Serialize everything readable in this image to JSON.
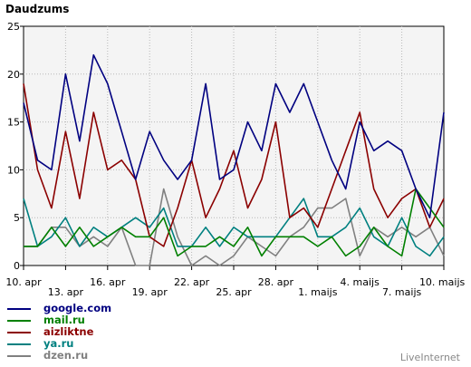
{
  "chart_data": {
    "type": "line",
    "title": "Daudzums",
    "ylim": [
      0,
      25
    ],
    "y_ticks": [
      0,
      5,
      10,
      15,
      20,
      25
    ],
    "grid": true,
    "legend_placement": "bottom-left",
    "x_tick_labels": [
      "10. apr",
      "13. apr",
      "16. apr",
      "19. apr",
      "22. apr",
      "25. apr",
      "28. apr",
      "1. maijs",
      "4. maijs",
      "7. maijs",
      "10. maijs"
    ],
    "x_tick_positions": [
      0,
      3,
      6,
      9,
      12,
      15,
      18,
      21,
      24,
      27,
      30
    ],
    "x_count": 31,
    "series": [
      {
        "name": "google.com",
        "color": "#000080",
        "values": [
          17,
          11,
          10,
          20,
          13,
          22,
          19,
          14,
          9,
          14,
          11,
          9,
          11,
          19,
          9,
          10,
          15,
          12,
          19,
          16,
          19,
          15,
          11,
          8,
          15,
          12,
          13,
          12,
          8,
          5,
          16
        ]
      },
      {
        "name": "mail.ru",
        "color": "#008000",
        "values": [
          2,
          2,
          4,
          2,
          4,
          2,
          3,
          4,
          3,
          3,
          5,
          1,
          2,
          2,
          3,
          2,
          4,
          1,
          3,
          3,
          3,
          2,
          3,
          1,
          2,
          4,
          2,
          1,
          8,
          6,
          4
        ]
      },
      {
        "name": "aizliktne",
        "color": "#8b0000",
        "values": [
          19,
          10,
          6,
          14,
          7,
          16,
          10,
          11,
          9,
          3,
          2,
          6,
          11,
          5,
          8,
          12,
          6,
          9,
          15,
          5,
          6,
          4,
          8,
          12,
          16,
          8,
          5,
          7,
          8,
          4,
          7
        ]
      },
      {
        "name": "ya.ru",
        "color": "#008080",
        "values": [
          7,
          2,
          3,
          5,
          2,
          4,
          3,
          4,
          5,
          4,
          6,
          2,
          2,
          4,
          2,
          4,
          3,
          3,
          3,
          5,
          7,
          3,
          3,
          4,
          6,
          3,
          2,
          5,
          2,
          1,
          3
        ]
      },
      {
        "name": "dzen.ru",
        "color": "#808080",
        "values": [
          2,
          2,
          4,
          4,
          2,
          3,
          2,
          4,
          0,
          0,
          8,
          3,
          0,
          1,
          0,
          1,
          3,
          2,
          1,
          3,
          4,
          6,
          6,
          7,
          1,
          4,
          3,
          4,
          3,
          4,
          1
        ]
      }
    ]
  },
  "legend": {
    "items": [
      {
        "label": "google.com",
        "color": "#000080"
      },
      {
        "label": "mail.ru",
        "color": "#008000"
      },
      {
        "label": "aizliktne",
        "color": "#8b0000"
      },
      {
        "label": "ya.ru",
        "color": "#008080"
      },
      {
        "label": "dzen.ru",
        "color": "#808080"
      }
    ]
  },
  "credit": "LiveInternet"
}
